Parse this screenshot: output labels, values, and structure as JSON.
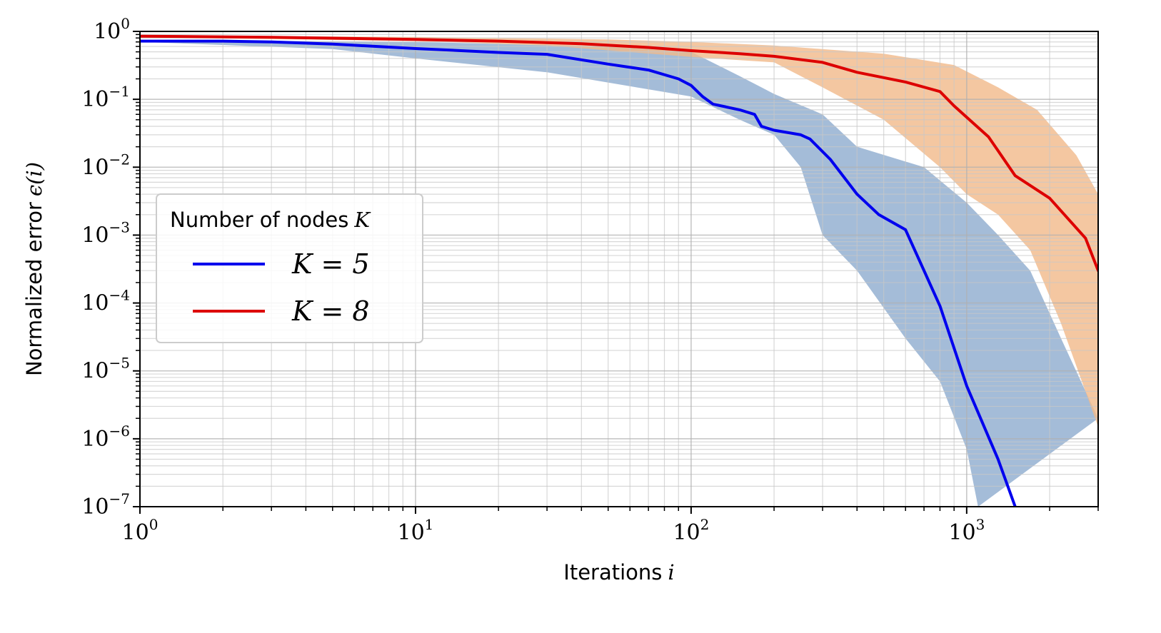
{
  "chart_data": {
    "type": "line",
    "xscale": "log",
    "yscale": "log",
    "xlim": [
      1,
      3000
    ],
    "ylim": [
      1e-07,
      1
    ],
    "grid": true,
    "xlabel": "Iterations",
    "xlabel_symbol": "i",
    "ylabel": "Normalized error",
    "ylabel_symbol": "ϵ(i)",
    "x_ticks": [
      {
        "base": "10",
        "exp": "0",
        "value": 1
      },
      {
        "base": "10",
        "exp": "1",
        "value": 10
      },
      {
        "base": "10",
        "exp": "2",
        "value": 100
      },
      {
        "base": "10",
        "exp": "3",
        "value": 1000
      }
    ],
    "y_ticks": [
      {
        "base": "10",
        "exp": "0",
        "value": 1
      },
      {
        "base": "10",
        "exp": "−1",
        "value": 0.1
      },
      {
        "base": "10",
        "exp": "−2",
        "value": 0.01
      },
      {
        "base": "10",
        "exp": "−3",
        "value": 0.001
      },
      {
        "base": "10",
        "exp": "−4",
        "value": 0.0001
      },
      {
        "base": "10",
        "exp": "−5",
        "value": 1e-05
      },
      {
        "base": "10",
        "exp": "−6",
        "value": 1e-06
      },
      {
        "base": "10",
        "exp": "−7",
        "value": 1e-07
      }
    ],
    "legend": {
      "title": "Number of nodes",
      "title_symbol": "K",
      "position": "center-left"
    },
    "series": [
      {
        "name": "K = 5",
        "color": "#0000ee",
        "band_color": "#a4bcd8",
        "line": [
          [
            1,
            0.72
          ],
          [
            2,
            0.72
          ],
          [
            3,
            0.7
          ],
          [
            5,
            0.65
          ],
          [
            10,
            0.56
          ],
          [
            20,
            0.49
          ],
          [
            30,
            0.46
          ],
          [
            50,
            0.33
          ],
          [
            70,
            0.27
          ],
          [
            90,
            0.2
          ],
          [
            100,
            0.16
          ],
          [
            110,
            0.11
          ],
          [
            120,
            0.085
          ],
          [
            150,
            0.07
          ],
          [
            170,
            0.06
          ],
          [
            180,
            0.04
          ],
          [
            200,
            0.035
          ],
          [
            250,
            0.03
          ],
          [
            270,
            0.026
          ],
          [
            320,
            0.013
          ],
          [
            400,
            0.004
          ],
          [
            480,
            0.002
          ],
          [
            600,
            0.0012
          ],
          [
            700,
            0.0003
          ],
          [
            800,
            9e-05
          ],
          [
            1000,
            6e-06
          ],
          [
            1300,
            5e-07
          ],
          [
            1500,
            1e-07
          ]
        ],
        "band_upper": [
          [
            1,
            0.75
          ],
          [
            10,
            0.7
          ],
          [
            50,
            0.6
          ],
          [
            100,
            0.5
          ],
          [
            150,
            0.22
          ],
          [
            180,
            0.15
          ],
          [
            200,
            0.12
          ],
          [
            300,
            0.06
          ],
          [
            400,
            0.02
          ],
          [
            700,
            0.01
          ],
          [
            1000,
            0.003
          ],
          [
            1300,
            0.001
          ],
          [
            1700,
            0.0003
          ],
          [
            2200,
            3e-05
          ],
          [
            3000,
            2e-06
          ]
        ],
        "band_lower": [
          [
            1,
            0.7
          ],
          [
            5,
            0.55
          ],
          [
            10,
            0.4
          ],
          [
            30,
            0.25
          ],
          [
            100,
            0.11
          ],
          [
            150,
            0.05
          ],
          [
            200,
            0.03
          ],
          [
            250,
            0.01
          ],
          [
            300,
            0.001
          ],
          [
            400,
            0.0003
          ],
          [
            600,
            3e-05
          ],
          [
            800,
            7e-06
          ],
          [
            1000,
            7e-07
          ],
          [
            1100,
            1e-07
          ]
        ]
      },
      {
        "name": "K = 8",
        "color": "#dd0000",
        "band_color": "#f1b98a",
        "line": [
          [
            1,
            0.85
          ],
          [
            3,
            0.82
          ],
          [
            10,
            0.76
          ],
          [
            20,
            0.72
          ],
          [
            40,
            0.66
          ],
          [
            70,
            0.58
          ],
          [
            100,
            0.52
          ],
          [
            150,
            0.47
          ],
          [
            200,
            0.43
          ],
          [
            300,
            0.35
          ],
          [
            400,
            0.25
          ],
          [
            600,
            0.18
          ],
          [
            800,
            0.13
          ],
          [
            900,
            0.08
          ],
          [
            1200,
            0.028
          ],
          [
            1500,
            0.0075
          ],
          [
            2000,
            0.0035
          ],
          [
            2700,
            0.0009
          ],
          [
            3000,
            0.0003
          ]
        ],
        "band_upper": [
          [
            1,
            0.87
          ],
          [
            10,
            0.83
          ],
          [
            50,
            0.76
          ],
          [
            100,
            0.7
          ],
          [
            200,
            0.62
          ],
          [
            500,
            0.47
          ],
          [
            900,
            0.32
          ],
          [
            1300,
            0.15
          ],
          [
            1800,
            0.07
          ],
          [
            2500,
            0.015
          ],
          [
            3000,
            0.004
          ]
        ],
        "band_lower": [
          [
            1,
            0.82
          ],
          [
            10,
            0.72
          ],
          [
            30,
            0.62
          ],
          [
            100,
            0.42
          ],
          [
            200,
            0.35
          ],
          [
            300,
            0.15
          ],
          [
            500,
            0.05
          ],
          [
            800,
            0.01
          ],
          [
            1000,
            0.004
          ],
          [
            1300,
            0.002
          ],
          [
            1700,
            0.0006
          ],
          [
            2200,
            5e-05
          ],
          [
            3000,
            1.5e-06
          ]
        ]
      }
    ]
  }
}
